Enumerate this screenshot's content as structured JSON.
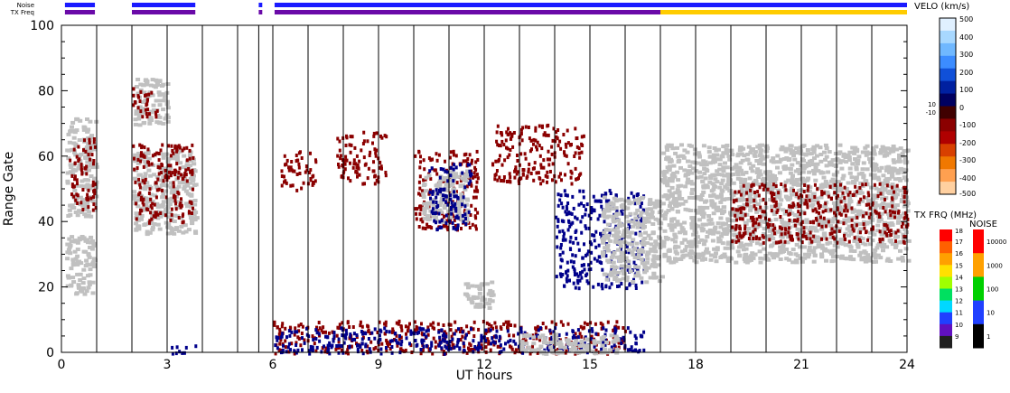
{
  "chart_data": {
    "type": "heatmap",
    "xlabel": "UT hours",
    "ylabel": "Range Gate",
    "xlim": [
      0,
      24
    ],
    "ylim": [
      0,
      100
    ],
    "x_ticks": [
      {
        "value": 0,
        "label": "0"
      },
      {
        "value": 3,
        "label": "3"
      },
      {
        "value": 6,
        "label": "6"
      },
      {
        "value": 9,
        "label": "9"
      },
      {
        "value": 12,
        "label": "12"
      },
      {
        "value": 15,
        "label": "15"
      },
      {
        "value": 18,
        "label": "18"
      },
      {
        "value": 21,
        "label": "21"
      },
      {
        "value": 24,
        "label": "24"
      }
    ],
    "y_ticks": [
      {
        "value": 0,
        "label": "0"
      },
      {
        "value": 20,
        "label": "20"
      },
      {
        "value": 40,
        "label": "40"
      },
      {
        "value": 60,
        "label": "60"
      },
      {
        "value": 80,
        "label": "80"
      },
      {
        "value": 100,
        "label": "100"
      }
    ],
    "scan_boundaries_ut": [
      1.0,
      2.0,
      3.0,
      4.0,
      5.0,
      5.6,
      6.0,
      7.0,
      8.0,
      9.0,
      10.0,
      11.0,
      12.0,
      13.0,
      14.0,
      15.0,
      16.0,
      17.0,
      18.0,
      19.0,
      20.0,
      21.0,
      22.0,
      23.0
    ],
    "top_strips": [
      {
        "label": "Noise",
        "segments": [
          {
            "from": 0.1,
            "to": 0.95,
            "color": "#1a1aff"
          },
          {
            "from": 2.0,
            "to": 3.8,
            "color": "#1a1aff"
          },
          {
            "from": 5.6,
            "to": 5.7,
            "color": "#1a1aff"
          },
          {
            "from": 6.05,
            "to": 24.0,
            "color": "#1a1aff"
          }
        ]
      },
      {
        "label": "TX Freq",
        "segments": [
          {
            "from": 0.1,
            "to": 0.95,
            "color": "#6a0aa8"
          },
          {
            "from": 2.0,
            "to": 3.8,
            "color": "#6a0aa8"
          },
          {
            "from": 5.6,
            "to": 5.7,
            "color": "#6a0aa8"
          },
          {
            "from": 6.05,
            "to": 17.0,
            "color": "#6a0aa8"
          },
          {
            "from": 17.0,
            "to": 24.0,
            "color": "#ffcc00"
          }
        ]
      }
    ],
    "echo_regions": [
      {
        "name": "ground scatter",
        "x": [
          0.1,
          0.95
        ],
        "y": [
          42,
          72
        ],
        "color": "#c0c0c0"
      },
      {
        "name": "ground scatter",
        "x": [
          0.1,
          0.9
        ],
        "y": [
          18,
          36
        ],
        "color": "#c0c0c0"
      },
      {
        "name": "negative velocity",
        "x": [
          0.2,
          0.95
        ],
        "y": [
          44,
          66
        ],
        "color": "#8b0000"
      },
      {
        "name": "ground scatter",
        "x": [
          2.0,
          3.8
        ],
        "y": [
          36,
          62
        ],
        "color": "#c0c0c0"
      },
      {
        "name": "negative velocity",
        "x": [
          2.0,
          3.7
        ],
        "y": [
          40,
          64
        ],
        "color": "#8b0000"
      },
      {
        "name": "ground scatter",
        "x": [
          2.0,
          3.0
        ],
        "y": [
          70,
          84
        ],
        "color": "#c0c0c0"
      },
      {
        "name": "negative velocity",
        "x": [
          2.0,
          2.7
        ],
        "y": [
          72,
          82
        ],
        "color": "#8b0000"
      },
      {
        "name": "negative velocity",
        "x": [
          6.2,
          7.2
        ],
        "y": [
          50,
          62
        ],
        "color": "#8b0000"
      },
      {
        "name": "negative velocity",
        "x": [
          7.8,
          9.2
        ],
        "y": [
          52,
          68
        ],
        "color": "#8b0000"
      },
      {
        "name": "negative velocity",
        "x": [
          10.0,
          11.8
        ],
        "y": [
          38,
          62
        ],
        "color": "#8b0000"
      },
      {
        "name": "ground scatter",
        "x": [
          10.2,
          11.5
        ],
        "y": [
          40,
          56
        ],
        "color": "#c0c0c0"
      },
      {
        "name": "positive velocity",
        "x": [
          10.4,
          11.6
        ],
        "y": [
          38,
          58
        ],
        "color": "#00008b"
      },
      {
        "name": "negative velocity",
        "x": [
          12.2,
          14.8
        ],
        "y": [
          52,
          70
        ],
        "color": "#8b0000"
      },
      {
        "name": "positive velocity",
        "x": [
          14.0,
          16.5
        ],
        "y": [
          20,
          50
        ],
        "color": "#00008b"
      },
      {
        "name": "ground scatter",
        "x": [
          15.3,
          17.0
        ],
        "y": [
          22,
          48
        ],
        "color": "#c0c0c0"
      },
      {
        "name": "ground scatter",
        "x": [
          11.4,
          12.2
        ],
        "y": [
          14,
          22
        ],
        "color": "#c0c0c0"
      },
      {
        "name": "ground scatter",
        "x": [
          17.0,
          24.0
        ],
        "y": [
          28,
          64
        ],
        "color": "#c0c0c0"
      },
      {
        "name": "negative velocity",
        "x": [
          19.0,
          24.0
        ],
        "y": [
          34,
          52
        ],
        "color": "#8b0000"
      },
      {
        "name": "negative velocity",
        "x": [
          6.0,
          16.0
        ],
        "y": [
          0,
          10
        ],
        "color": "#8b0000"
      },
      {
        "name": "positive velocity",
        "x": [
          6.0,
          16.5
        ],
        "y": [
          0,
          8
        ],
        "color": "#00008b"
      },
      {
        "name": "ground scatter",
        "x": [
          13.0,
          15.8
        ],
        "y": [
          0,
          6
        ],
        "color": "#c0c0c0"
      },
      {
        "name": "positive velocity",
        "x": [
          3.1,
          3.8
        ],
        "y": [
          0,
          3
        ],
        "color": "#00008b"
      }
    ],
    "velo_scale": {
      "title": "VELO (km/s)",
      "labels": [
        "500",
        "400",
        "300",
        "200",
        "100",
        "0",
        "10",
        "-10",
        "-100",
        "-200",
        "-300",
        "-400",
        "-500"
      ],
      "colors_top_to_bottom": [
        "#e0f0ff",
        "#a8d8ff",
        "#70b8ff",
        "#3c8cff",
        "#1050d8",
        "#0020a0",
        "#000060",
        "#400000",
        "#8b0000",
        "#b00000",
        "#d84000",
        "#f07800",
        "#ffa050",
        "#ffd0a0"
      ]
    },
    "tx_freq_scale": {
      "title": "TX FRQ (MHz)",
      "labels": [
        "18",
        "17",
        "16",
        "15",
        "14",
        "13",
        "12",
        "11",
        "10",
        "9"
      ],
      "colors_top_to_bottom": [
        "#ff0000",
        "#ff6000",
        "#ffa000",
        "#ffe000",
        "#a0ff00",
        "#00e060",
        "#00d8ff",
        "#2040ff",
        "#6010c0",
        "#202020"
      ]
    },
    "noise_scale": {
      "title": "NOISE",
      "labels": [
        "10000",
        "1000",
        "100",
        "10",
        "1"
      ],
      "colors_top_to_bottom": [
        "#ff0000",
        "#ffa000",
        "#00d000",
        "#2040ff",
        "#000000"
      ]
    }
  }
}
